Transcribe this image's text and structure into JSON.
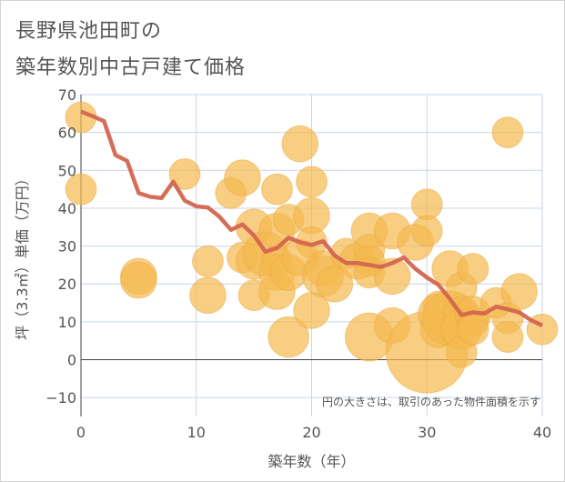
{
  "title_lines": [
    "長野県池田町の",
    "築年数別中古戸建て価格"
  ],
  "chart_data": {
    "type": "scatter",
    "title": "長野県池田町の築年数別中古戸建て価格",
    "xlabel": "築年数（年）",
    "ylabel": "坪（3.3㎡）単価（万円）",
    "xlim": [
      0,
      40
    ],
    "ylim": [
      -15,
      70
    ],
    "xticks": [
      0,
      10,
      20,
      30,
      40
    ],
    "yticks": [
      -10,
      0,
      10,
      20,
      30,
      40,
      50,
      60,
      70
    ],
    "xtick_labels": [
      "0",
      "10",
      "20",
      "30",
      "40"
    ],
    "ytick_labels": [
      "−10",
      "0",
      "10",
      "20",
      "30",
      "40",
      "50",
      "60",
      "70"
    ],
    "grid": true,
    "annotation": "円の大きさは、取引のあった物件面積を示す",
    "colors": {
      "bubble": "#f5b94f",
      "bubble_stroke": "#e8a73d",
      "line": "#d4654f",
      "grid": "#c9d6e6",
      "zero_line": "#444444",
      "plot_background": "#ffffff"
    },
    "scatter": [
      {
        "x": 0,
        "y": 64,
        "size": 2
      },
      {
        "x": 0,
        "y": 45,
        "size": 2
      },
      {
        "x": 5,
        "y": 22,
        "size": 3
      },
      {
        "x": 5,
        "y": 21,
        "size": 3
      },
      {
        "x": 9,
        "y": 49,
        "size": 2
      },
      {
        "x": 11,
        "y": 26,
        "size": 2
      },
      {
        "x": 11,
        "y": 17,
        "size": 3
      },
      {
        "x": 13,
        "y": 44,
        "size": 2
      },
      {
        "x": 14,
        "y": 48,
        "size": 3
      },
      {
        "x": 14,
        "y": 27,
        "size": 2
      },
      {
        "x": 15,
        "y": 35,
        "size": 3
      },
      {
        "x": 15,
        "y": 26,
        "size": 3
      },
      {
        "x": 15,
        "y": 17,
        "size": 2
      },
      {
        "x": 16,
        "y": 28,
        "size": 5
      },
      {
        "x": 17,
        "y": 45,
        "size": 2
      },
      {
        "x": 17,
        "y": 34,
        "size": 3
      },
      {
        "x": 17,
        "y": 26,
        "size": 2
      },
      {
        "x": 17,
        "y": 23,
        "size": 3
      },
      {
        "x": 17,
        "y": 18,
        "size": 3
      },
      {
        "x": 18,
        "y": 37,
        "size": 2
      },
      {
        "x": 18,
        "y": 23,
        "size": 3
      },
      {
        "x": 18,
        "y": 6,
        "size": 4
      },
      {
        "x": 19,
        "y": 57,
        "size": 3
      },
      {
        "x": 19,
        "y": 27,
        "size": 3
      },
      {
        "x": 20,
        "y": 47,
        "size": 2
      },
      {
        "x": 20,
        "y": 38,
        "size": 3
      },
      {
        "x": 20,
        "y": 31,
        "size": 2
      },
      {
        "x": 20,
        "y": 13,
        "size": 3
      },
      {
        "x": 21,
        "y": 24,
        "size": 3
      },
      {
        "x": 21,
        "y": 22,
        "size": 4
      },
      {
        "x": 22,
        "y": 20,
        "size": 3
      },
      {
        "x": 23,
        "y": 28,
        "size": 2
      },
      {
        "x": 24,
        "y": 26,
        "size": 3
      },
      {
        "x": 25,
        "y": 34,
        "size": 3
      },
      {
        "x": 25,
        "y": 29,
        "size": 2
      },
      {
        "x": 25,
        "y": 26,
        "size": 2
      },
      {
        "x": 25,
        "y": 23,
        "size": 2
      },
      {
        "x": 25,
        "y": 6,
        "size": 6
      },
      {
        "x": 27,
        "y": 34,
        "size": 3
      },
      {
        "x": 27,
        "y": 22,
        "size": 3
      },
      {
        "x": 27,
        "y": 9,
        "size": 3
      },
      {
        "x": 29,
        "y": 31,
        "size": 3
      },
      {
        "x": 30,
        "y": 41,
        "size": 2
      },
      {
        "x": 30,
        "y": 34,
        "size": 2
      },
      {
        "x": 30,
        "y": 2,
        "size": 20
      },
      {
        "x": 31,
        "y": 14,
        "size": 2
      },
      {
        "x": 31,
        "y": 12,
        "size": 4
      },
      {
        "x": 31,
        "y": 8,
        "size": 3
      },
      {
        "x": 32,
        "y": 24,
        "size": 3
      },
      {
        "x": 32,
        "y": 11,
        "size": 8
      },
      {
        "x": 33,
        "y": 19,
        "size": 2
      },
      {
        "x": 33,
        "y": 12,
        "size": 3
      },
      {
        "x": 33,
        "y": 8,
        "size": 4
      },
      {
        "x": 33,
        "y": 2,
        "size": 2
      },
      {
        "x": 34,
        "y": 24,
        "size": 2
      },
      {
        "x": 34,
        "y": 12,
        "size": 3
      },
      {
        "x": 34,
        "y": 10,
        "size": 2
      },
      {
        "x": 34,
        "y": 8,
        "size": 2
      },
      {
        "x": 36,
        "y": 15,
        "size": 2
      },
      {
        "x": 37,
        "y": 60,
        "size": 2
      },
      {
        "x": 37,
        "y": 11,
        "size": 2
      },
      {
        "x": 37,
        "y": 6,
        "size": 2
      },
      {
        "x": 38,
        "y": 18,
        "size": 3
      },
      {
        "x": 40,
        "y": 8,
        "size": 2
      }
    ],
    "trend_line": {
      "x": [
        0,
        1,
        2,
        3,
        4,
        5,
        6,
        7,
        8,
        9,
        10,
        11,
        12,
        13,
        14,
        15,
        16,
        17,
        18,
        19,
        20,
        21,
        22,
        23,
        24,
        25,
        26,
        27,
        28,
        29,
        30,
        31,
        32,
        33,
        34,
        35,
        36,
        37,
        38,
        39,
        40
      ],
      "y": [
        65.5,
        64.3,
        63,
        54,
        52.5,
        44,
        43,
        42.7,
        47,
        42,
        40.5,
        40.2,
        37.8,
        34.3,
        35.7,
        32.8,
        28.5,
        29.5,
        32.2,
        31,
        30.3,
        31.3,
        27.5,
        25.5,
        25.5,
        25,
        24.5,
        25.5,
        27,
        24,
        21.7,
        19.8,
        16,
        11.8,
        12.5,
        12.2,
        14,
        13.3,
        12.5,
        10.5,
        9
      ]
    }
  }
}
